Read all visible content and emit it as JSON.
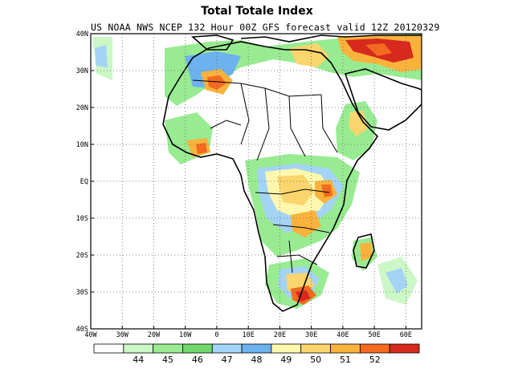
{
  "title": "Total Totale Index",
  "subtitle": "US NOAA NWS NCEP 132 Hour 00Z GFS forecast valid 12Z 20120329",
  "map": {
    "lon_range": [
      -40,
      65
    ],
    "lat_range": [
      -40,
      40
    ],
    "grid": "dotted",
    "lon_ticks": [
      {
        "value": -40,
        "label": "40W"
      },
      {
        "value": -30,
        "label": "30W"
      },
      {
        "value": -20,
        "label": "20W"
      },
      {
        "value": -10,
        "label": "10W"
      },
      {
        "value": 0,
        "label": "0"
      },
      {
        "value": 10,
        "label": "10E"
      },
      {
        "value": 20,
        "label": "20E"
      },
      {
        "value": 30,
        "label": "30E"
      },
      {
        "value": 40,
        "label": "40E"
      },
      {
        "value": 50,
        "label": "50E"
      },
      {
        "value": 60,
        "label": "60E"
      }
    ],
    "lat_ticks": [
      {
        "value": 40,
        "label": "40N"
      },
      {
        "value": 30,
        "label": "30N"
      },
      {
        "value": 20,
        "label": "20N"
      },
      {
        "value": 10,
        "label": "10N"
      },
      {
        "value": 0,
        "label": "EQ"
      },
      {
        "value": -10,
        "label": "10S"
      },
      {
        "value": -20,
        "label": "20S"
      },
      {
        "value": -30,
        "label": "30S"
      },
      {
        "value": -40,
        "label": "40S"
      }
    ]
  },
  "colorbar": {
    "colors": [
      "#ffffff",
      "#ccf7c7",
      "#99eb92",
      "#70d86a",
      "#a4d4f5",
      "#6cb2ee",
      "#fff7ae",
      "#fbd56d",
      "#f9b33c",
      "#f46a1f",
      "#d7291d"
    ],
    "labels": [
      "44",
      "45",
      "46",
      "47",
      "48",
      "49",
      "50",
      "51",
      "52"
    ]
  },
  "colors": {
    "coast": "#000000",
    "grid": "#666666"
  }
}
